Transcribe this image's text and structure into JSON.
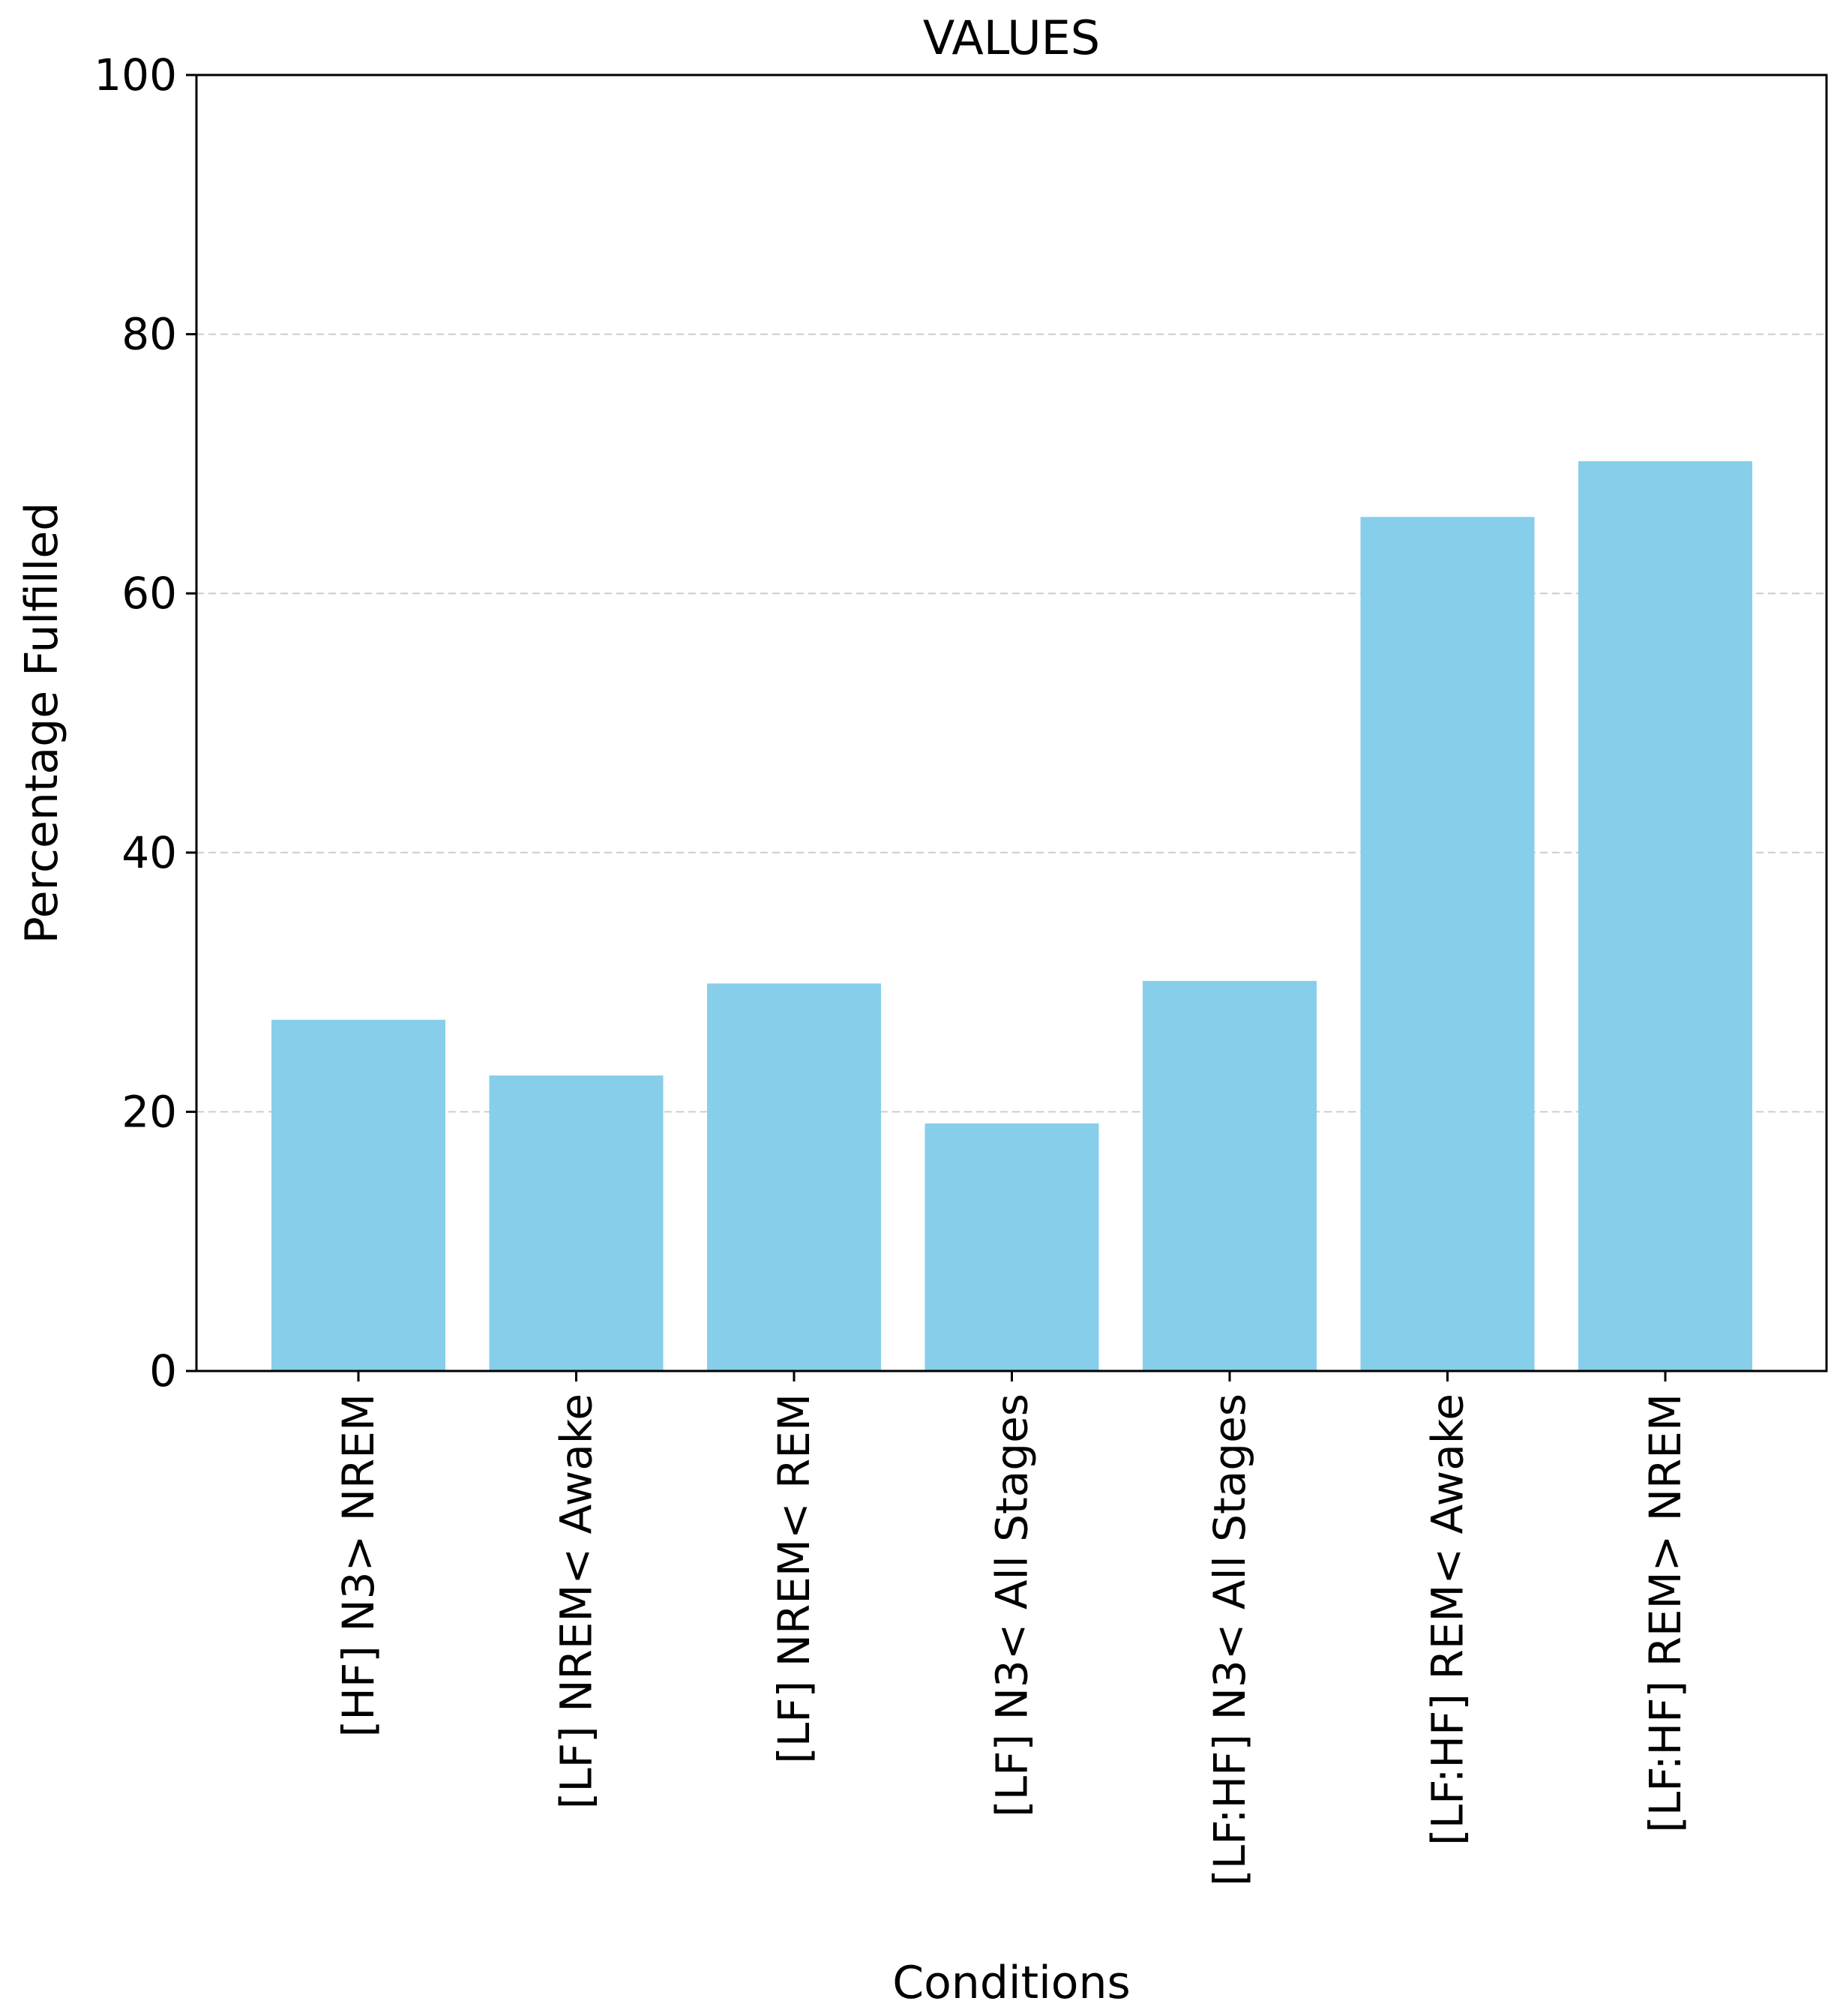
{
  "chart_data": {
    "type": "bar",
    "title": "VALUES",
    "xlabel": "Conditions",
    "ylabel": "Percentage Fulfilled",
    "categories": [
      "[HF] N3> NREM",
      "[LF] NREM< Awake",
      "[LF] NREM< REM",
      "[LF] N3< All Stages",
      "[LF:HF] N3< All Stages",
      "[LF:HF] REM< Awake",
      "[LF:HF] REM> NREM"
    ],
    "values": [
      27.1,
      22.8,
      29.9,
      19.1,
      30.1,
      65.9,
      70.2
    ],
    "ylim": [
      0,
      100
    ],
    "yticks": [
      "0",
      "20",
      "40",
      "60",
      "80",
      "100"
    ],
    "grid": "horizontal dashed",
    "colors": {
      "bar": "#87CEEB",
      "grid": "#cccccc",
      "axis": "#000000"
    }
  }
}
